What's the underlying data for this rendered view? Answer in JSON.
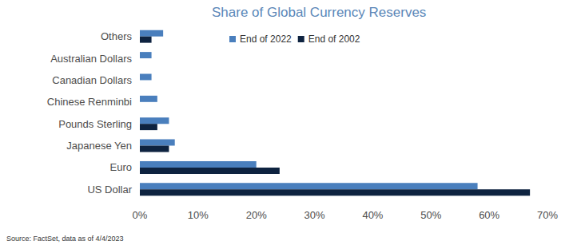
{
  "chart_data": {
    "type": "bar",
    "orientation": "horizontal",
    "title": "Share of Global Currency Reserves",
    "annotations": [
      "Source: FactSet, data as of 4/4/2023"
    ],
    "categories": [
      "US Dollar",
      "Euro",
      "Japanese Yen",
      "Pounds Sterling",
      "Chinese Renminbi",
      "Canadian Dollars",
      "Australian Dollars",
      "Others"
    ],
    "series": [
      {
        "name": "End of 2022",
        "color": "#4a7fbd",
        "values": [
          58,
          20,
          6,
          5,
          3,
          2,
          2,
          4
        ]
      },
      {
        "name": "End of 2002",
        "color": "#0e2340",
        "values": [
          67,
          24,
          5,
          3,
          null,
          null,
          null,
          2
        ]
      }
    ],
    "xlim": [
      0,
      70
    ],
    "xticks": [
      {
        "value": 0,
        "label": "0%"
      },
      {
        "value": 10,
        "label": "10%"
      },
      {
        "value": 20,
        "label": "20%"
      },
      {
        "value": 30,
        "label": "30%"
      },
      {
        "value": 40,
        "label": "40%"
      },
      {
        "value": 50,
        "label": "50%"
      },
      {
        "value": 60,
        "label": "60%"
      },
      {
        "value": 70,
        "label": "70%"
      }
    ],
    "grid": false,
    "legend": "top"
  }
}
